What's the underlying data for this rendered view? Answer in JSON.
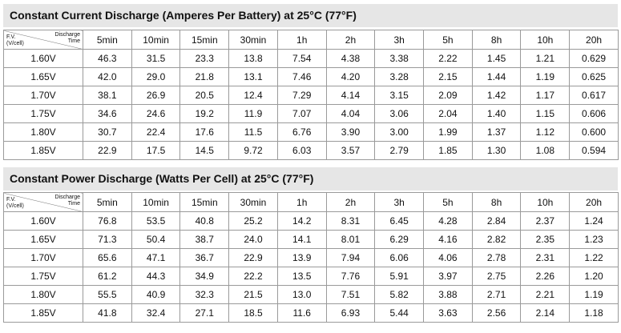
{
  "tables": [
    {
      "title": "Constant Current Discharge (Amperes Per Battery) at 25°C (77°F)",
      "corner_left": [
        "F.V.",
        "(V/cell)"
      ],
      "corner_right": [
        "Discharge",
        "Time"
      ],
      "columns": [
        "5min",
        "10min",
        "15min",
        "30min",
        "1h",
        "2h",
        "3h",
        "5h",
        "8h",
        "10h",
        "20h"
      ],
      "rows": [
        {
          "label": "1.60V",
          "values": [
            "46.3",
            "31.5",
            "23.3",
            "13.8",
            "7.54",
            "4.38",
            "3.38",
            "2.22",
            "1.45",
            "1.21",
            "0.629"
          ]
        },
        {
          "label": "1.65V",
          "values": [
            "42.0",
            "29.0",
            "21.8",
            "13.1",
            "7.46",
            "4.20",
            "3.28",
            "2.15",
            "1.44",
            "1.19",
            "0.625"
          ]
        },
        {
          "label": "1.70V",
          "values": [
            "38.1",
            "26.9",
            "20.5",
            "12.4",
            "7.29",
            "4.14",
            "3.15",
            "2.09",
            "1.42",
            "1.17",
            "0.617"
          ]
        },
        {
          "label": "1.75V",
          "values": [
            "34.6",
            "24.6",
            "19.2",
            "11.9",
            "7.07",
            "4.04",
            "3.06",
            "2.04",
            "1.40",
            "1.15",
            "0.606"
          ]
        },
        {
          "label": "1.80V",
          "values": [
            "30.7",
            "22.4",
            "17.6",
            "11.5",
            "6.76",
            "3.90",
            "3.00",
            "1.99",
            "1.37",
            "1.12",
            "0.600"
          ]
        },
        {
          "label": "1.85V",
          "values": [
            "22.9",
            "17.5",
            "14.5",
            "9.72",
            "6.03",
            "3.57",
            "2.79",
            "1.85",
            "1.30",
            "1.08",
            "0.594"
          ]
        }
      ]
    },
    {
      "title": "Constant Power Discharge (Watts Per Cell) at 25°C (77°F)",
      "corner_left": [
        "F.V.",
        "(V/cell)"
      ],
      "corner_right": [
        "Discharge",
        "Time"
      ],
      "columns": [
        "5min",
        "10min",
        "15min",
        "30min",
        "1h",
        "2h",
        "3h",
        "5h",
        "8h",
        "10h",
        "20h"
      ],
      "rows": [
        {
          "label": "1.60V",
          "values": [
            "76.8",
            "53.5",
            "40.8",
            "25.2",
            "14.2",
            "8.31",
            "6.45",
            "4.28",
            "2.84",
            "2.37",
            "1.24"
          ]
        },
        {
          "label": "1.65V",
          "values": [
            "71.3",
            "50.4",
            "38.7",
            "24.0",
            "14.1",
            "8.01",
            "6.29",
            "4.16",
            "2.82",
            "2.35",
            "1.23"
          ]
        },
        {
          "label": "1.70V",
          "values": [
            "65.6",
            "47.1",
            "36.7",
            "22.9",
            "13.9",
            "7.94",
            "6.06",
            "4.06",
            "2.78",
            "2.31",
            "1.22"
          ]
        },
        {
          "label": "1.75V",
          "values": [
            "61.2",
            "44.3",
            "34.9",
            "22.2",
            "13.5",
            "7.76",
            "5.91",
            "3.97",
            "2.75",
            "2.26",
            "1.20"
          ]
        },
        {
          "label": "1.80V",
          "values": [
            "55.5",
            "40.9",
            "32.3",
            "21.5",
            "13.0",
            "7.51",
            "5.82",
            "3.88",
            "2.71",
            "2.21",
            "1.19"
          ]
        },
        {
          "label": "1.85V",
          "values": [
            "41.8",
            "32.4",
            "27.1",
            "18.5",
            "11.6",
            "6.93",
            "5.44",
            "3.63",
            "2.56",
            "2.14",
            "1.18"
          ]
        }
      ]
    }
  ]
}
